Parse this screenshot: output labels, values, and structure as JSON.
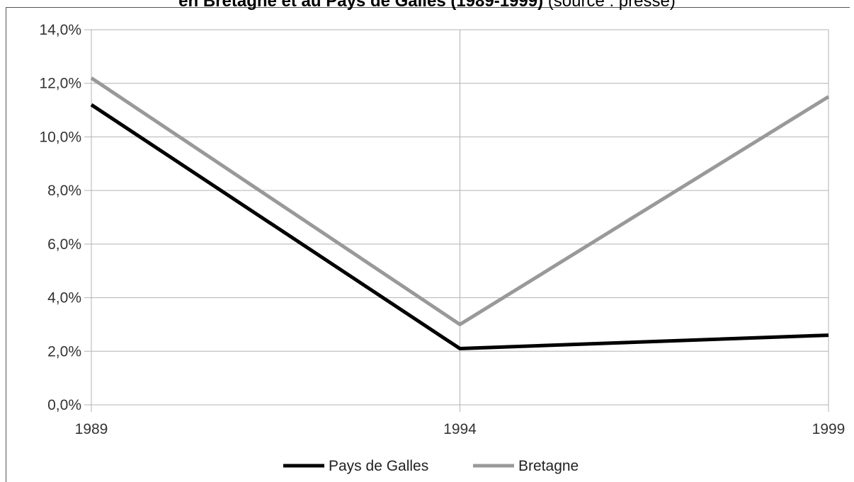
{
  "chart_data": {
    "type": "line",
    "title_bold": "en Bretagne et au Pays de Galles (1989-1999)",
    "title_rest": " (source : presse)",
    "x": [
      "1989",
      "1994",
      "1999"
    ],
    "ylim": [
      0,
      14
    ],
    "yticks": [
      "0,0%",
      "2,0%",
      "4,0%",
      "6,0%",
      "8,0%",
      "10,0%",
      "12,0%",
      "14,0%"
    ],
    "grid": true,
    "legend_position": "bottom",
    "series": [
      {
        "name": "Pays de Galles",
        "values": [
          11.2,
          2.1,
          2.6
        ],
        "color": "#000000"
      },
      {
        "name": "Bretagne",
        "values": [
          12.2,
          3.0,
          11.5
        ],
        "color": "#999999"
      }
    ]
  }
}
